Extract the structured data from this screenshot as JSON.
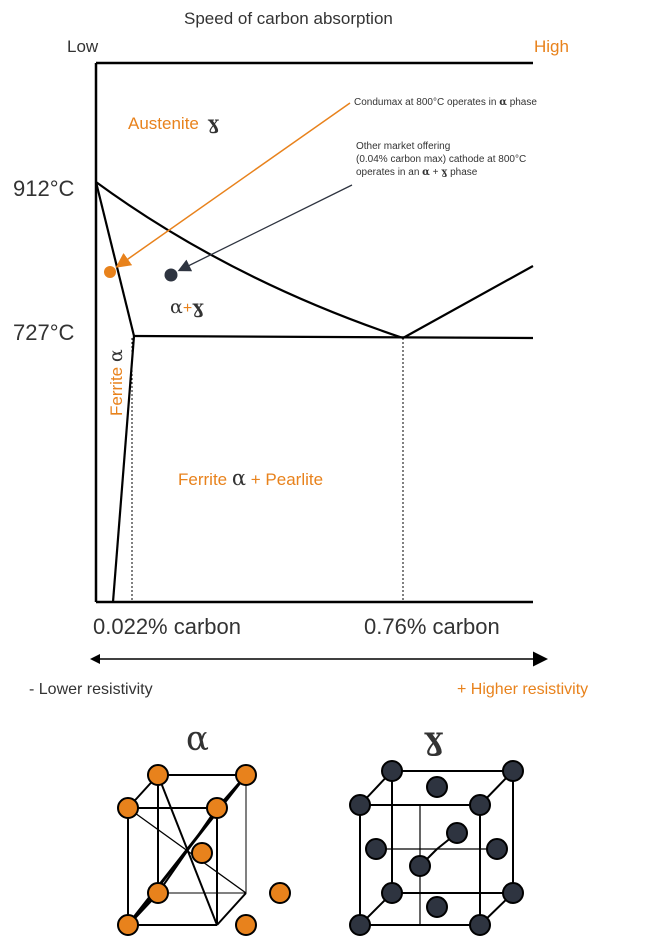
{
  "header": {
    "title": "Speed of carbon absorption",
    "low": "Low",
    "high": "High"
  },
  "temperatures": {
    "t912": "912°C",
    "t727": "727°C"
  },
  "phases": {
    "austenite": "Austenite",
    "austenite_symbol": "ɣ",
    "alpha_gamma_alpha": "α",
    "alpha_gamma_plus": "+",
    "alpha_gamma_gamma": "ɣ",
    "ferrite_label": "Ferrite",
    "ferrite_symbol": "α",
    "ferrite_pearlite_a": "Ferrite",
    "ferrite_pearlite_symbol": "α",
    "ferrite_pearlite_b": "+ Pearlite"
  },
  "annotations": {
    "condumax_a": "Condumax",
    "condumax_b": "at 800°C operates in",
    "condumax_symbol": "α",
    "condumax_c": "phase",
    "other_line1": "Other market offering",
    "other_line2": "(0.04% carbon max) cathode at 800°C",
    "other_line3a": "operates in an",
    "other_line3_alpha": "α",
    "other_line3_plus": "+",
    "other_line3_gamma": "ɣ",
    "other_line3b": "phase"
  },
  "carbon_axis": {
    "c1": "0.022% carbon",
    "c2": "0.76% carbon"
  },
  "resistivity": {
    "lower": "- Lower resistivity",
    "higher": "+ Higher resistivity"
  },
  "crystals": {
    "bcc_symbol": "α",
    "fcc_symbol": "ɣ"
  },
  "colors": {
    "orange": "#e8821c",
    "dark": "#2e3440",
    "line": "#000000"
  }
}
